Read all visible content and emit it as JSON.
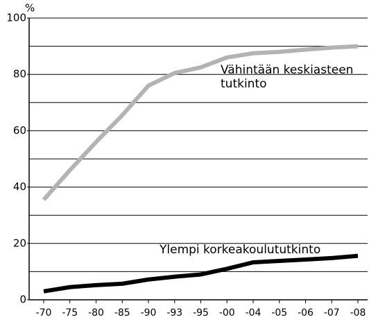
{
  "chart_data": {
    "type": "line",
    "y_label": "%",
    "categories": [
      "-70",
      "-75",
      "-80",
      "-85",
      "-90",
      "-93",
      "-95",
      "-00",
      "-04",
      "-05",
      "-06",
      "-07",
      "-08"
    ],
    "series": [
      {
        "name": "Vähintään keskiasteen tutkinto",
        "color": "#b3b3b3",
        "values": [
          35.5,
          46,
          56,
          65.5,
          76,
          80.5,
          82.5,
          86,
          87.5,
          88,
          88.8,
          89.5,
          90
        ]
      },
      {
        "name": "Ylempi korkeakoulututkinto",
        "color": "#000000",
        "values": [
          3,
          4.5,
          5.2,
          5.7,
          7.2,
          8.2,
          9,
          11,
          13.3,
          13.8,
          14.3,
          14.8,
          15.6
        ]
      }
    ],
    "ylim": [
      0,
      100
    ],
    "yticks": [
      0,
      20,
      40,
      60,
      80,
      100
    ],
    "ygrid": [
      10,
      20,
      30,
      40,
      50,
      60,
      70,
      80,
      90,
      100
    ],
    "grid": true
  }
}
